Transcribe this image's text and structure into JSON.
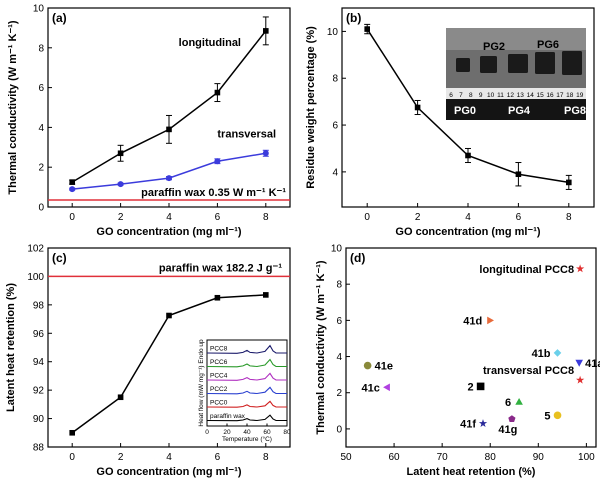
{
  "chart_data": [
    {
      "panel": "(a)",
      "type": "line",
      "ylabel": "Thermal conductivity (W m⁻¹ K⁻¹)",
      "xlabel": "GO concentration (mg ml⁻¹)",
      "xlim": [
        -1,
        9
      ],
      "ylim": [
        0,
        10
      ],
      "xticks": [
        0,
        2,
        4,
        6,
        8
      ],
      "yticks": [
        0,
        2,
        4,
        6,
        8,
        10
      ],
      "series": [
        {
          "name": "longitudinal",
          "color": "#000000",
          "x": [
            0,
            2,
            4,
            6,
            8
          ],
          "values": [
            1.25,
            2.7,
            3.9,
            5.75,
            8.85
          ],
          "errors": [
            0.1,
            0.4,
            0.7,
            0.45,
            0.7
          ]
        },
        {
          "name": "transversal",
          "color": "#3b3bdc",
          "x": [
            0,
            2,
            4,
            6,
            8
          ],
          "values": [
            0.9,
            1.15,
            1.45,
            2.3,
            2.7
          ],
          "errors": [
            0.05,
            0.05,
            0.08,
            0.12,
            0.15
          ]
        }
      ],
      "reference": {
        "label": "paraffin wax 0.35 W m⁻¹ K⁻¹",
        "value": 0.35,
        "color": "#e0303a"
      }
    },
    {
      "panel": "(b)",
      "type": "line",
      "ylabel": "Residue weight percentage (%)",
      "xlabel": "GO concentration (mg ml⁻¹)",
      "xlim": [
        -1,
        9
      ],
      "ylim": [
        2.5,
        11
      ],
      "xticks": [
        0,
        2,
        4,
        6,
        8
      ],
      "yticks": [
        4,
        6,
        8,
        10
      ],
      "series": [
        {
          "name": "residue",
          "color": "#000000",
          "x": [
            0,
            2,
            4,
            6,
            8
          ],
          "values": [
            10.1,
            6.75,
            4.7,
            3.9,
            3.55
          ],
          "errors": [
            0.2,
            0.3,
            0.3,
            0.5,
            0.3
          ]
        }
      ],
      "inset_photo": {
        "top_labels": [
          "PG2",
          "PG6"
        ],
        "bottom_labels": [
          "PG0",
          "PG4",
          "PG8"
        ],
        "ruler": [
          "6",
          "7",
          "8",
          "9",
          "10",
          "11",
          "12",
          "13",
          "14",
          "15",
          "16",
          "17",
          "18",
          "19"
        ]
      }
    },
    {
      "panel": "(c)",
      "type": "line",
      "ylabel": "Latent heat retention (%)",
      "xlabel": "GO concentration (mg ml⁻¹)",
      "xlim": [
        -1,
        9
      ],
      "ylim": [
        88,
        102
      ],
      "xticks": [
        0,
        2,
        4,
        6,
        8
      ],
      "yticks": [
        88,
        90,
        92,
        94,
        96,
        98,
        100,
        102
      ],
      "series": [
        {
          "name": "retention",
          "color": "#000000",
          "x": [
            0,
            2,
            4,
            6,
            8
          ],
          "values": [
            89.0,
            91.5,
            97.25,
            98.5,
            98.7
          ]
        }
      ],
      "reference": {
        "label": "paraffin wax 182.2 J g⁻¹",
        "value": 100,
        "color": "#e0303a"
      },
      "inset": {
        "ylabel": "Heat flow (mW mg⁻¹) Endo up",
        "xlabel": "Temperature (°C)",
        "xticks": [
          0,
          20,
          40,
          60,
          80
        ],
        "curves": [
          {
            "name": "PCC8",
            "color": "#1a1a6a"
          },
          {
            "name": "PCC6",
            "color": "#2a9a2a"
          },
          {
            "name": "PCC4",
            "color": "#b030c0"
          },
          {
            "name": "PCC2",
            "color": "#2a40d0"
          },
          {
            "name": "PCC0",
            "color": "#d02020"
          },
          {
            "name": "paraffin wax",
            "color": "#000000"
          }
        ]
      }
    },
    {
      "panel": "(d)",
      "type": "scatter",
      "ylabel": "Thermal conductivity (W m⁻¹ K⁻¹)",
      "xlabel": "Latent heat retention (%)",
      "xlim": [
        50,
        102
      ],
      "ylim": [
        -1,
        10
      ],
      "xticks": [
        50,
        60,
        70,
        80,
        90,
        100
      ],
      "yticks": [
        0,
        2,
        4,
        6,
        8,
        10
      ],
      "points": [
        {
          "label": "longitudinal PCC8",
          "x": 98.7,
          "y": 8.85,
          "marker": "star",
          "color": "#e03030"
        },
        {
          "label": "41d",
          "x": 80.0,
          "y": 6.0,
          "marker": "tri-right",
          "color": "#e86a3a"
        },
        {
          "label": "41b",
          "x": 94.0,
          "y": 4.2,
          "marker": "diamond",
          "color": "#6ad0ea"
        },
        {
          "label": "41a",
          "x": 98.5,
          "y": 3.65,
          "marker": "tri-down",
          "color": "#3b3bdc"
        },
        {
          "label": "41e",
          "x": 54.5,
          "y": 3.5,
          "marker": "circle",
          "color": "#8a8a3a"
        },
        {
          "label": "transversal PCC8",
          "x": 98.7,
          "y": 2.7,
          "marker": "star",
          "color": "#e03030"
        },
        {
          "label": "41c",
          "x": 58.5,
          "y": 2.3,
          "marker": "tri-left",
          "color": "#b040e0"
        },
        {
          "label": "2",
          "x": 78.0,
          "y": 2.35,
          "marker": "square",
          "color": "#000000"
        },
        {
          "label": "6",
          "x": 86.0,
          "y": 1.5,
          "marker": "tri-up",
          "color": "#30b040"
        },
        {
          "label": "5",
          "x": 94.0,
          "y": 0.75,
          "marker": "circle",
          "color": "#e8c020"
        },
        {
          "label": "41f",
          "x": 78.5,
          "y": 0.3,
          "marker": "star",
          "color": "#2a2a9a"
        },
        {
          "label": "41g",
          "x": 84.5,
          "y": 0.55,
          "marker": "pentagon",
          "color": "#8a2a8a"
        }
      ]
    }
  ]
}
